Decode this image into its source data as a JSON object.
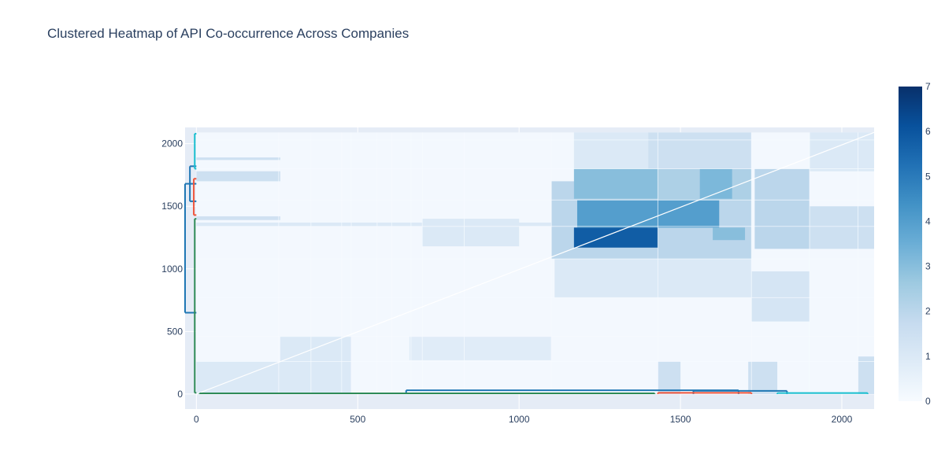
{
  "chart_data": {
    "type": "heatmap",
    "title": "Clustered Heatmap of API Co-occurrence Across Companies",
    "xlabel": "",
    "ylabel": "",
    "xlim": [
      -35,
      2100
    ],
    "ylim": [
      -120,
      2130
    ],
    "x_ticks": [
      0,
      500,
      1000,
      1500,
      2000
    ],
    "y_ticks": [
      0,
      500,
      1000,
      1500,
      2000
    ],
    "colorbar": {
      "min": 0,
      "max": 7,
      "ticks": [
        0,
        1,
        2,
        3,
        4,
        5,
        6,
        7
      ],
      "colorscale": [
        "#f7fbff",
        "#deebf7",
        "#c6dbef",
        "#9ecae1",
        "#6baed6",
        "#4292c6",
        "#2171b5",
        "#08519c",
        "#08306b"
      ]
    },
    "heatmap_extent": {
      "x": [
        0,
        2100
      ],
      "y": [
        0,
        2090
      ]
    },
    "background_value": 0.15,
    "blocks": [
      {
        "x0": 0,
        "x1": 260,
        "y0": 0,
        "y1": 260,
        "v": 1.0
      },
      {
        "x0": 0,
        "x1": 260,
        "y0": 1700,
        "y1": 1780,
        "v": 1.5
      },
      {
        "x0": 0,
        "x1": 260,
        "y0": 1870,
        "y1": 1890,
        "v": 1.5
      },
      {
        "x0": 0,
        "x1": 260,
        "y0": 1390,
        "y1": 1420,
        "v": 1.4
      },
      {
        "x0": 0,
        "x1": 1100,
        "y0": 1340,
        "y1": 1370,
        "v": 1.0
      },
      {
        "x0": 260,
        "x1": 480,
        "y0": 0,
        "y1": 460,
        "v": 1.0
      },
      {
        "x0": 660,
        "x1": 1100,
        "y0": 270,
        "y1": 460,
        "v": 0.8
      },
      {
        "x0": 1110,
        "x1": 1720,
        "y0": 770,
        "y1": 1080,
        "v": 1.0
      },
      {
        "x0": 1100,
        "x1": 1720,
        "y0": 1080,
        "y1": 1700,
        "v": 2.0
      },
      {
        "x0": 1170,
        "x1": 1430,
        "y0": 1170,
        "y1": 1330,
        "v": 5.8
      },
      {
        "x0": 1180,
        "x1": 1620,
        "y0": 1330,
        "y1": 1550,
        "v": 4.0
      },
      {
        "x0": 1430,
        "x1": 1720,
        "y0": 1550,
        "y1": 1800,
        "v": 2.3
      },
      {
        "x0": 1170,
        "x1": 1430,
        "y0": 1560,
        "y1": 1800,
        "v": 3.0
      },
      {
        "x0": 1730,
        "x1": 1900,
        "y0": 1160,
        "y1": 1800,
        "v": 2.0
      },
      {
        "x0": 1720,
        "x1": 1900,
        "y0": 580,
        "y1": 980,
        "v": 1.2
      },
      {
        "x0": 1400,
        "x1": 1720,
        "y0": 1800,
        "y1": 2090,
        "v": 1.5
      },
      {
        "x0": 1170,
        "x1": 1400,
        "y0": 1800,
        "y1": 2090,
        "v": 1.0
      },
      {
        "x0": 1900,
        "x1": 2100,
        "y0": 1160,
        "y1": 1500,
        "v": 1.5
      },
      {
        "x0": 1900,
        "x1": 2100,
        "y0": 1780,
        "y1": 2090,
        "v": 1.0
      },
      {
        "x0": 1430,
        "x1": 1500,
        "y0": 0,
        "y1": 260,
        "v": 1.5
      },
      {
        "x0": 1710,
        "x1": 1800,
        "y0": 0,
        "y1": 260,
        "v": 1.5
      },
      {
        "x0": 2050,
        "x1": 2100,
        "y0": 0,
        "y1": 300,
        "v": 1.5
      },
      {
        "x0": 700,
        "x1": 1000,
        "y0": 1180,
        "y1": 1400,
        "v": 1.0
      },
      {
        "x0": 1560,
        "x1": 1660,
        "y0": 1560,
        "y1": 1800,
        "v": 3.2
      },
      {
        "x0": 1600,
        "x1": 1700,
        "y0": 1230,
        "y1": 1330,
        "v": 3.0
      }
    ],
    "dendrogram_left": [
      {
        "x": -35,
        "y0": 650,
        "y1": 1680,
        "color": "#1f77b4"
      },
      {
        "x": -20,
        "y0": 1540,
        "y1": 1820,
        "color": "#1f77b4"
      },
      {
        "x": -5,
        "y0": 1800,
        "y1": 2080,
        "color": "#17becf"
      },
      {
        "x": -8,
        "y0": 1430,
        "y1": 1720,
        "color": "#ef553b"
      },
      {
        "x": -5,
        "y0": 10,
        "y1": 1400,
        "color": "#2e8b57"
      }
    ],
    "dendrogram_bottom": [
      {
        "x0": 650,
        "x1": 1680,
        "y": 30,
        "color": "#1f77b4"
      },
      {
        "x0": 1540,
        "x1": 1830,
        "y": 25,
        "color": "#1f77b4"
      },
      {
        "x0": 1800,
        "x1": 2080,
        "y": 8,
        "color": "#17becf"
      },
      {
        "x0": 1430,
        "x1": 1720,
        "y": 10,
        "color": "#ef553b"
      },
      {
        "x0": 10,
        "x1": 1420,
        "y": 6,
        "color": "#2e8b57"
      }
    ]
  }
}
